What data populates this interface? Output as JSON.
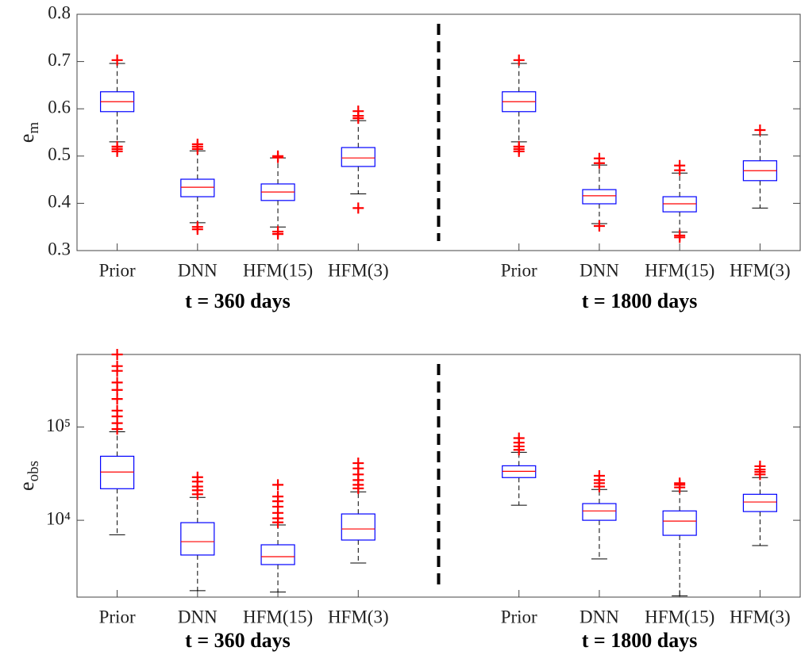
{
  "chart_data": [
    {
      "type": "box",
      "ylabel": {
        "base": "e",
        "sub": "m"
      },
      "log": false,
      "ylim": [
        0.3,
        0.8
      ],
      "yticks": [
        0.3,
        0.4,
        0.5,
        0.6,
        0.7,
        0.8
      ],
      "box_color": "#0000ff",
      "median_color": "#ff0000",
      "whisker_color": "#000000",
      "outlier_color": "#ff0000",
      "groups": [
        {
          "label": "t = 360 days",
          "categories": [
            "Prior",
            "DNN",
            "HFM(15)",
            "HFM(3)"
          ],
          "boxes": [
            {
              "whislo": 0.53,
              "q1": 0.594,
              "med": 0.615,
              "q3": 0.636,
              "whishi": 0.696,
              "outliers": [
                0.703,
                0.52,
                0.515,
                0.51
              ]
            },
            {
              "whislo": 0.359,
              "q1": 0.414,
              "med": 0.434,
              "q3": 0.451,
              "whishi": 0.511,
              "outliers": [
                0.525,
                0.52,
                0.515,
                0.35,
                0.345
              ]
            },
            {
              "whislo": 0.35,
              "q1": 0.406,
              "med": 0.424,
              "q3": 0.441,
              "whishi": 0.496,
              "outliers": [
                0.5,
                0.497,
                0.34,
                0.335
              ]
            },
            {
              "whislo": 0.42,
              "q1": 0.478,
              "med": 0.496,
              "q3": 0.518,
              "whishi": 0.575,
              "outliers": [
                0.595,
                0.585,
                0.58,
                0.39
              ]
            }
          ]
        },
        {
          "label": "t = 1800 days",
          "categories": [
            "Prior",
            "DNN",
            "HFM(15)",
            "HFM(3)"
          ],
          "boxes": [
            {
              "whislo": 0.53,
              "q1": 0.594,
              "med": 0.615,
              "q3": 0.636,
              "whishi": 0.696,
              "outliers": [
                0.703,
                0.52,
                0.515,
                0.51
              ]
            },
            {
              "whislo": 0.357,
              "q1": 0.399,
              "med": 0.416,
              "q3": 0.429,
              "whishi": 0.481,
              "outliers": [
                0.495,
                0.485,
                0.352
              ]
            },
            {
              "whislo": 0.339,
              "q1": 0.382,
              "med": 0.399,
              "q3": 0.414,
              "whishi": 0.464,
              "outliers": [
                0.48,
                0.47,
                0.332,
                0.328
              ]
            },
            {
              "whislo": 0.39,
              "q1": 0.448,
              "med": 0.469,
              "q3": 0.49,
              "whishi": 0.545,
              "outliers": [
                0.555
              ]
            }
          ]
        }
      ]
    },
    {
      "type": "box",
      "ylabel": {
        "base": "e",
        "sub": "obs"
      },
      "log": true,
      "ylim": [
        1500,
        600000
      ],
      "yticks": [
        {
          "value": 10000,
          "label": "10⁴"
        },
        {
          "value": 100000,
          "label": "10⁵"
        }
      ],
      "box_color": "#0000ff",
      "median_color": "#ff0000",
      "whisker_color": "#000000",
      "outlier_color": "#ff0000",
      "groups": [
        {
          "label": "t = 360 days",
          "categories": [
            "Prior",
            "DNN",
            "HFM(15)",
            "HFM(3)"
          ],
          "boxes": [
            {
              "whislo": 7000,
              "q1": 21800,
              "med": 32900,
              "q3": 48600,
              "whishi": 89000,
              "outliers": [
                95000,
                110000,
                130000,
                150000,
                200000,
                250000,
                300000,
                400000,
                450000,
                600000
              ]
            },
            {
              "whislo": 1760,
              "q1": 4240,
              "med": 5900,
              "q3": 9430,
              "whishi": 17600,
              "outliers": [
                19000,
                21000,
                23000,
                26000,
                29000
              ]
            },
            {
              "whislo": 1700,
              "q1": 3350,
              "med": 4070,
              "q3": 5460,
              "whishi": 8900,
              "outliers": [
                9500,
                10500,
                12000,
                14000,
                16000,
                18000,
                24000
              ]
            },
            {
              "whislo": 3480,
              "q1": 6140,
              "med": 8070,
              "q3": 11700,
              "whishi": 20200,
              "outliers": [
                22000,
                24000,
                27000,
                31000,
                36000,
                41000
              ]
            }
          ]
        },
        {
          "label": "t = 1800 days",
          "categories": [
            "Prior",
            "DNN",
            "HFM(15)",
            "HFM(3)"
          ],
          "boxes": [
            {
              "whislo": 14500,
              "q1": 28700,
              "med": 33500,
              "q3": 38400,
              "whishi": 53600,
              "outliers": [
                57000,
                62000,
                68000,
                76000
              ]
            },
            {
              "whislo": 3850,
              "q1": 10000,
              "med": 12600,
              "q3": 15100,
              "whishi": 21400,
              "outliers": [
                23000,
                25000,
                27000,
                30000
              ]
            },
            {
              "whislo": 1550,
              "q1": 6900,
              "med": 9800,
              "q3": 12600,
              "whishi": 20600,
              "outliers": [
                22500,
                24000,
                25000
              ]
            },
            {
              "whislo": 5360,
              "q1": 12400,
              "med": 15700,
              "q3": 19000,
              "whishi": 28700,
              "outliers": [
                31000,
                33000,
                35000,
                38000
              ]
            }
          ]
        }
      ]
    }
  ]
}
